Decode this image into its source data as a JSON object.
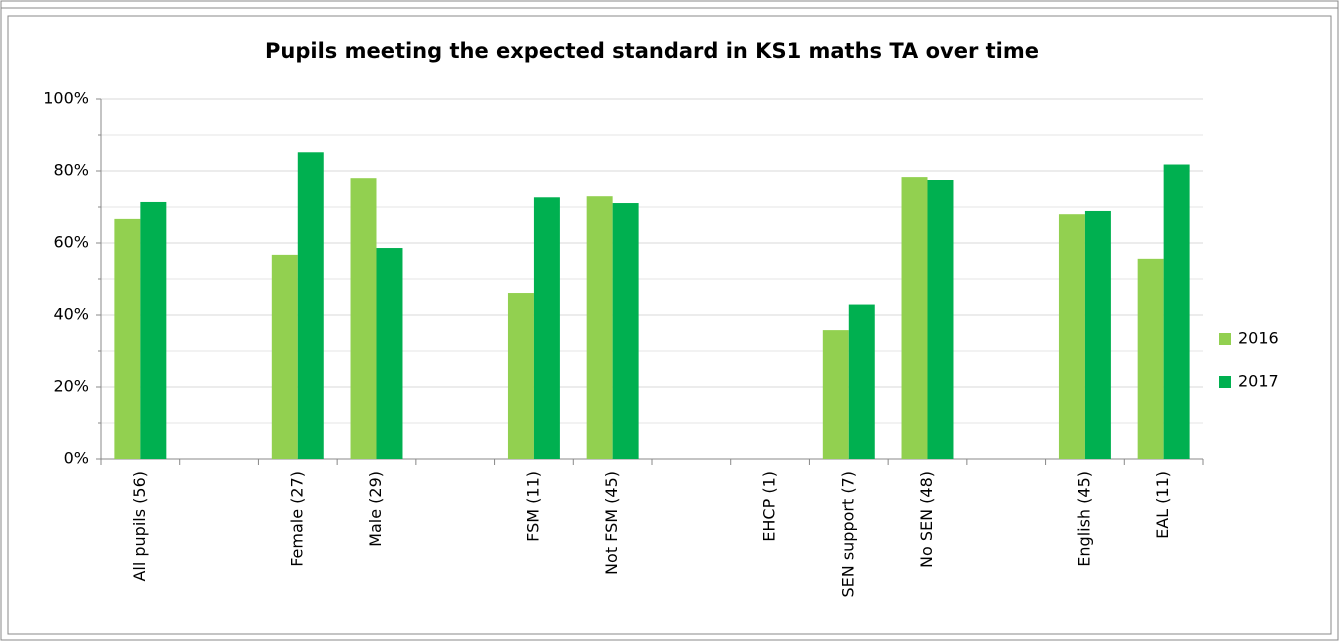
{
  "chart_data": {
    "type": "bar",
    "title": "Pupils meeting the expected standard in KS1 maths TA over time",
    "categories": [
      "All pupils (56)",
      null,
      "Female (27)",
      "Male (29)",
      null,
      "FSM (11)",
      "Not FSM (45)",
      null,
      "EHCP (1)",
      "SEN support (7)",
      "No SEN (48)",
      null,
      "English (45)",
      "EAL (11)"
    ],
    "series": [
      {
        "name": "2016",
        "color": "#92d050",
        "values": [
          66.7,
          null,
          56.7,
          78,
          null,
          46.1,
          73,
          null,
          null,
          35.8,
          78.3,
          null,
          68,
          55.6
        ]
      },
      {
        "name": "2017",
        "color": "#00b050",
        "values": [
          71.4,
          null,
          85.2,
          58.6,
          null,
          72.7,
          71.1,
          null,
          null,
          42.9,
          77.5,
          null,
          68.9,
          81.8
        ]
      }
    ],
    "ylim": [
      0,
      100
    ],
    "yticks": [
      {
        "value": 0,
        "label": "0%"
      },
      {
        "value": 20,
        "label": "20%"
      },
      {
        "value": 40,
        "label": "40%"
      },
      {
        "value": 60,
        "label": "60%"
      },
      {
        "value": 80,
        "label": "80%"
      },
      {
        "value": 100,
        "label": "100%"
      }
    ],
    "grid": true,
    "legend": "right"
  }
}
